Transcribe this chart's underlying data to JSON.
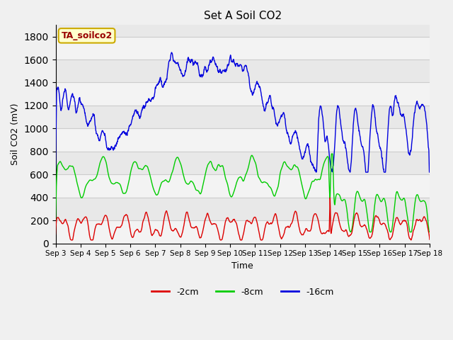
{
  "title": "Set A Soil CO2",
  "ylabel": "Soil CO2 (mV)",
  "xlabel": "Time",
  "annotation": "TA_soilco2",
  "annotation_bg": "#ffffcc",
  "annotation_border": "#ccaa00",
  "annotation_text_color": "#990000",
  "legend_labels": [
    "-2cm",
    "-8cm",
    "-16cm"
  ],
  "line_colors": [
    "#dd0000",
    "#00cc00",
    "#0000dd"
  ],
  "ylim": [
    0,
    1900
  ],
  "yticks": [
    0,
    200,
    400,
    600,
    800,
    1000,
    1200,
    1400,
    1600,
    1800
  ],
  "grid_color": "#cccccc",
  "bg_color": "#e8e8e8",
  "fig_bg": "#f0f0f0",
  "x_labels": [
    "Sep 3",
    "Sep 4",
    "Sep 5",
    "Sep 6",
    "Sep 7",
    "Sep 8",
    "Sep 9",
    "Sep 10",
    "Sep 11",
    "Sep 12",
    "Sep 13",
    "Sep 14",
    "Sep 15",
    "Sep 16",
    "Sep 17",
    "Sep 18"
  ],
  "figsize": [
    6.4,
    4.8
  ],
  "dpi": 100
}
